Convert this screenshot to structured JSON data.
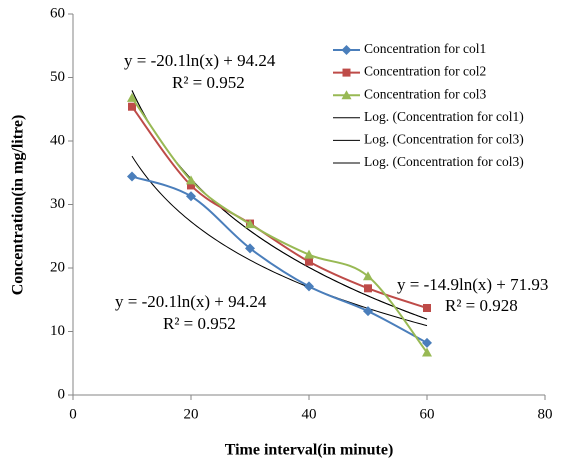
{
  "chart_data": {
    "type": "line",
    "x_label": "Time interval(in minute)",
    "y_label": "Concentration(in mg/litre)",
    "x": [
      10,
      20,
      30,
      40,
      50,
      60
    ],
    "series": [
      {
        "name": "Concentration for col1",
        "color": "#4a7ebb",
        "marker": "diamond",
        "values": [
          34.4,
          31.3,
          23.1,
          17.1,
          13.2,
          8.2
        ]
      },
      {
        "name": "Concentration for col2",
        "color": "#be4b48",
        "marker": "square",
        "values": [
          45.4,
          33.0,
          27.0,
          21.0,
          16.8,
          13.7
        ]
      },
      {
        "name": "Concentration for col3",
        "color": "#98b954",
        "marker": "triangle",
        "values": [
          46.8,
          33.8,
          26.9,
          22.1,
          18.7,
          6.7
        ]
      }
    ],
    "trendlines": [
      {
        "name": "Log. (Concentration for col1)",
        "color": "#000000",
        "coef": -14.9,
        "intercept": 71.93
      },
      {
        "name": "Log. (Concentration for col3)",
        "color": "#000000",
        "coef": -20.1,
        "intercept": 94.24
      },
      {
        "name": "Log. (Concentration for col3)",
        "color": "#000000",
        "coef": -20.1,
        "intercept": 94.24
      }
    ],
    "annotations": [
      "y = -20.1ln(x) + 94.24",
      "R² = 0.952",
      "y = -20.1ln(x) + 94.24",
      "R² = 0.952",
      "y = -14.9ln(x) + 71.93",
      "R² = 0.928"
    ],
    "xlim": [
      0,
      80
    ],
    "xticks": [
      0,
      20,
      40,
      60,
      80
    ],
    "ylim": [
      0,
      60
    ],
    "yticks": [
      0,
      10,
      20,
      30,
      40,
      50,
      60
    ],
    "grid": false
  }
}
